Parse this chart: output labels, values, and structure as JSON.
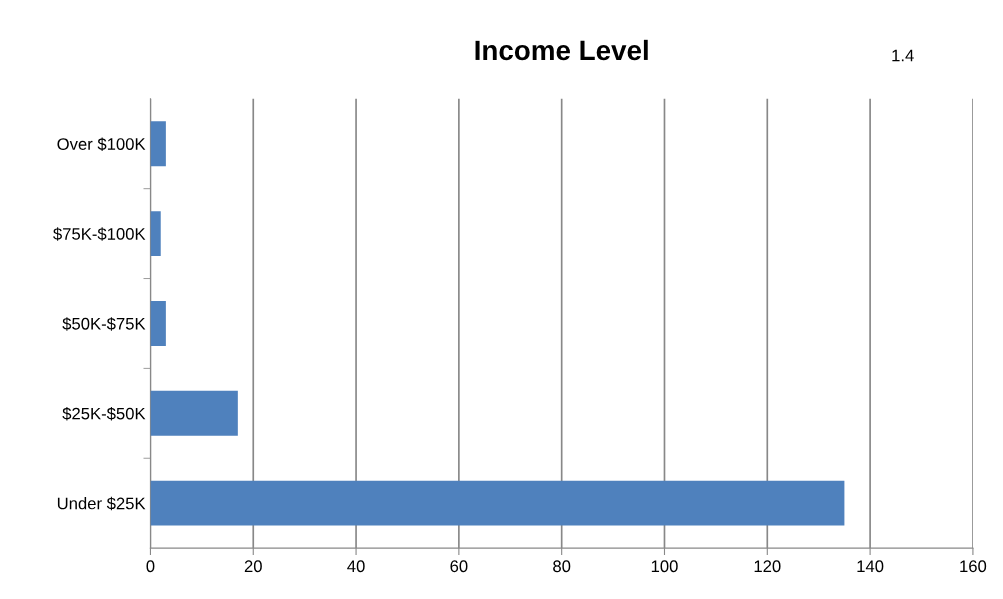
{
  "chart_data": {
    "type": "bar",
    "title": "Income Level",
    "annotations": [
      "1.4"
    ],
    "orientation": "horizontal",
    "categories": [
      "Over $100K",
      "$75K-$100K",
      "$50K-$75K",
      "$25K-$50K",
      "Under $25K"
    ],
    "values": [
      3,
      2,
      3,
      17,
      135
    ],
    "color": "#4f81bd",
    "xlim": [
      0,
      160
    ],
    "xticks": [
      0,
      20,
      40,
      60,
      80,
      100,
      120,
      140,
      160
    ],
    "grid": "x",
    "legend": false
  }
}
